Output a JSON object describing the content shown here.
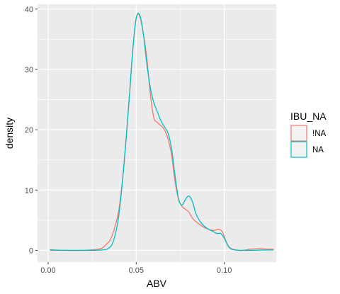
{
  "chart_data": {
    "type": "line",
    "title": "",
    "xlabel": "ABV",
    "ylabel": "density",
    "xlim": [
      -0.006,
      0.1295
    ],
    "ylim": [
      -1.95,
      40.8
    ],
    "x_ticks": [
      0.0,
      0.05,
      0.1
    ],
    "x_tick_labels": [
      "0.00",
      "0.05",
      "0.10"
    ],
    "y_ticks": [
      0,
      10,
      20,
      30,
      40
    ],
    "y_tick_labels": [
      "0",
      "10",
      "20",
      "30",
      "40"
    ],
    "grid": true,
    "legend": {
      "title": "IBU_NA",
      "placement": "right"
    },
    "series": [
      {
        "name": "!NA",
        "color": "#F8766D",
        "x": [
          0.001,
          0.01,
          0.02,
          0.025,
          0.03,
          0.033,
          0.036,
          0.04,
          0.043,
          0.046,
          0.048,
          0.05,
          0.052,
          0.054,
          0.056,
          0.058,
          0.06,
          0.062,
          0.064,
          0.066,
          0.068,
          0.07,
          0.072,
          0.074,
          0.076,
          0.078,
          0.08,
          0.082,
          0.085,
          0.088,
          0.091,
          0.094,
          0.097,
          0.099,
          0.101,
          0.103,
          0.106,
          0.11,
          0.115,
          0.12,
          0.125,
          0.128
        ],
        "values": [
          0,
          0,
          0,
          0.1,
          0.3,
          1.0,
          2.2,
          6.5,
          14.0,
          25.0,
          33.0,
          38.5,
          38.8,
          36.0,
          32.0,
          26.0,
          22.0,
          21.2,
          20.7,
          20.0,
          18.5,
          16.0,
          11.5,
          8.5,
          7.3,
          6.8,
          6.3,
          5.3,
          4.5,
          3.9,
          3.5,
          3.3,
          3.5,
          3.0,
          1.5,
          0.5,
          0.1,
          0,
          0.2,
          0.3,
          0.2,
          0.2
        ]
      },
      {
        "name": "NA",
        "color": "#00BFC4",
        "x": [
          0.001,
          0.01,
          0.02,
          0.03,
          0.034,
          0.037,
          0.04,
          0.043,
          0.046,
          0.048,
          0.05,
          0.052,
          0.054,
          0.056,
          0.058,
          0.06,
          0.062,
          0.064,
          0.066,
          0.068,
          0.07,
          0.072,
          0.074,
          0.076,
          0.078,
          0.08,
          0.082,
          0.084,
          0.087,
          0.09,
          0.093,
          0.096,
          0.098,
          0.1,
          0.102,
          0.104,
          0.108,
          0.115,
          0.12,
          0.125,
          0.128
        ],
        "values": [
          0.1,
          0,
          0,
          0.05,
          0.3,
          1.5,
          5.5,
          14.0,
          25.0,
          33.0,
          38.5,
          39.0,
          36.0,
          31.0,
          27.0,
          24.5,
          23.0,
          21.5,
          20.5,
          19.5,
          17.0,
          12.5,
          8.5,
          7.5,
          8.5,
          9.0,
          8.0,
          6.0,
          4.5,
          3.7,
          3.2,
          2.8,
          2.8,
          2.0,
          0.8,
          0.2,
          0,
          0,
          0.05,
          0.05,
          0.05
        ]
      }
    ]
  }
}
